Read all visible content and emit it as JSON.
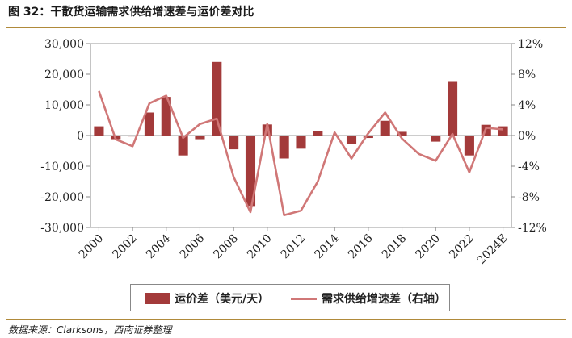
{
  "header": {
    "title": "图 32：干散货运输需求供给增速差与运价差对比"
  },
  "footer": {
    "source": "数据来源：Clarksons，西南证券整理"
  },
  "legend": {
    "bar_label": "运价差（美元/天）",
    "line_label": "需求供给增速差（右轴）"
  },
  "chart_data": {
    "type": "bar+line",
    "title": "干散货运输需求供给增速差与运价差对比",
    "x_tick_labels": [
      "2000",
      "2002",
      "2004",
      "2006",
      "2008",
      "2010",
      "2012",
      "2014",
      "2016",
      "2018",
      "2020",
      "2022",
      "2024E"
    ],
    "left_axis": {
      "ylim": [
        -30000,
        30000
      ],
      "ticks": [
        -30000,
        -20000,
        -10000,
        0,
        10000,
        20000,
        30000
      ],
      "tick_labels": [
        "-30,000",
        "-20,000",
        "-10,000",
        "0",
        "10,000",
        "20,000",
        "30,000"
      ]
    },
    "right_axis": {
      "ylim": [
        -12,
        12
      ],
      "ticks": [
        -12,
        -8,
        -4,
        0,
        4,
        8,
        12
      ],
      "tick_labels": [
        "-12%",
        "-8%",
        "-4%",
        "0%",
        "4%",
        "8%",
        "12%"
      ]
    },
    "bar_series": {
      "name": "运价差（美元/天）",
      "color": "#a33a3a",
      "x": [
        2000,
        2001,
        2002,
        2003,
        2004,
        2005,
        2006,
        2007,
        2008,
        2009,
        2010,
        2011,
        2012,
        2013,
        2014,
        2015,
        2016,
        2017,
        2018,
        2019,
        2020,
        2021,
        2022,
        2023,
        2024
      ],
      "values": [
        3000,
        -1200,
        -300,
        7500,
        12600,
        -6500,
        -1200,
        24000,
        -4500,
        -23000,
        3600,
        -7500,
        -4300,
        1500,
        0,
        -2700,
        -800,
        4800,
        1200,
        -200,
        -2000,
        17500,
        -6500,
        3500,
        3000
      ]
    },
    "line_series": {
      "name": "需求供给增速差（右轴）",
      "color": "#d07777",
      "x": [
        2000,
        2001,
        2002,
        2003,
        2004,
        2005,
        2006,
        2007,
        2008,
        2009,
        2010,
        2011,
        2012,
        2013,
        2014,
        2015,
        2016,
        2017,
        2018,
        2019,
        2020,
        2021,
        2022,
        2023,
        2024
      ],
      "values": [
        5.8,
        -0.5,
        -1.4,
        4.2,
        5.2,
        -0.3,
        1.5,
        2.2,
        -5.4,
        -10.0,
        1.5,
        -10.4,
        -9.8,
        -6.0,
        0.4,
        -3.0,
        0.3,
        3.0,
        -0.4,
        -2.4,
        -3.3,
        0.2,
        -4.8,
        1.0,
        0.8
      ]
    }
  }
}
